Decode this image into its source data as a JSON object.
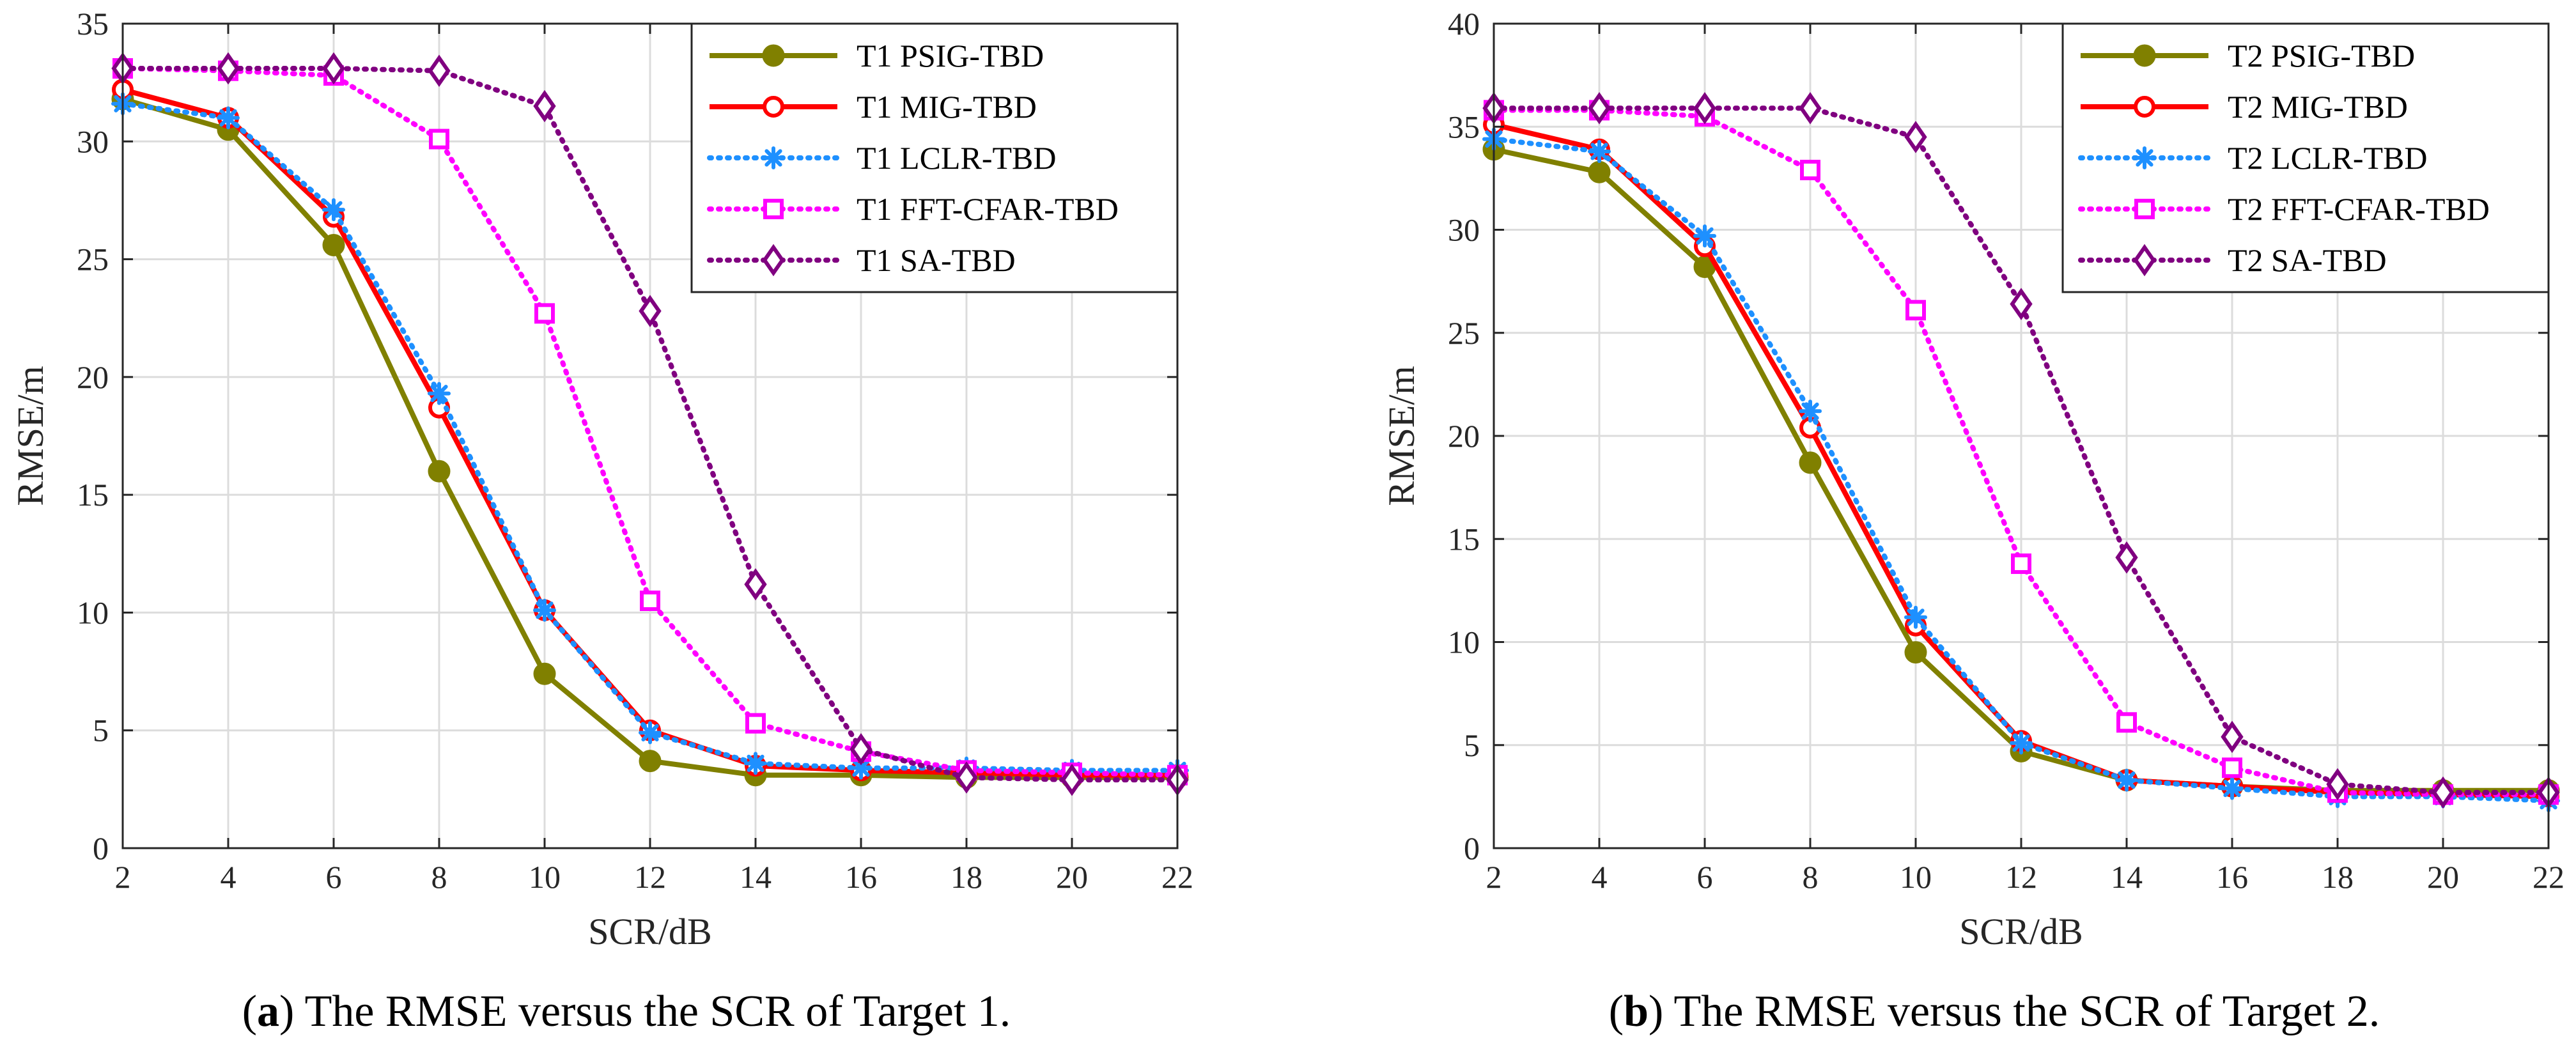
{
  "chart_data": [
    {
      "type": "line",
      "caption_prefix": "(",
      "caption_letter": "a",
      "caption_text": ") The RMSE versus the SCR of Target 1.",
      "xlabel": "SCR/dB",
      "ylabel": "RMSE/m",
      "xlim": [
        2,
        22
      ],
      "ylim": [
        0,
        35
      ],
      "xticks": [
        2,
        4,
        6,
        8,
        10,
        12,
        14,
        16,
        18,
        20,
        22
      ],
      "yticks": [
        0,
        5,
        10,
        15,
        20,
        25,
        30,
        35
      ],
      "grid": true,
      "legend_position": "top-right",
      "x": [
        2,
        4,
        6,
        8,
        10,
        12,
        14,
        16,
        18,
        20,
        22
      ],
      "series": [
        {
          "name": "T1 PSIG-TBD",
          "color": "#808000",
          "style": "solid",
          "marker": "filled-circle",
          "values": [
            31.8,
            30.5,
            25.6,
            16.0,
            7.4,
            3.7,
            3.1,
            3.1,
            3.0,
            3.0,
            3.0
          ]
        },
        {
          "name": "T1 MIG-TBD",
          "color": "#ff0000",
          "style": "solid",
          "marker": "open-circle",
          "values": [
            32.2,
            31.0,
            26.8,
            18.7,
            10.1,
            5.0,
            3.5,
            3.3,
            3.2,
            3.1,
            3.1
          ]
        },
        {
          "name": "T1 LCLR-TBD",
          "color": "#1e90ff",
          "style": "dotted",
          "marker": "asterisk",
          "values": [
            31.6,
            31.0,
            27.1,
            19.3,
            10.1,
            4.9,
            3.6,
            3.4,
            3.4,
            3.3,
            3.3
          ]
        },
        {
          "name": "T1 FFT-CFAR-TBD",
          "color": "#ff00ff",
          "style": "dotted",
          "marker": "square",
          "values": [
            33.1,
            33.0,
            32.8,
            30.1,
            22.7,
            10.5,
            5.3,
            4.1,
            3.3,
            3.2,
            3.1
          ]
        },
        {
          "name": "T1 SA-TBD",
          "color": "#800080",
          "style": "dotted",
          "marker": "diamond",
          "values": [
            33.1,
            33.1,
            33.1,
            33.0,
            31.5,
            22.8,
            11.2,
            4.2,
            3.0,
            2.9,
            2.9
          ]
        }
      ]
    },
    {
      "type": "line",
      "caption_prefix": "(",
      "caption_letter": "b",
      "caption_text": ") The RMSE versus the SCR of Target 2.",
      "xlabel": "SCR/dB",
      "ylabel": "RMSE/m",
      "xlim": [
        2,
        22
      ],
      "ylim": [
        0,
        40
      ],
      "xticks": [
        2,
        4,
        6,
        8,
        10,
        12,
        14,
        16,
        18,
        20,
        22
      ],
      "yticks": [
        0,
        5,
        10,
        15,
        20,
        25,
        30,
        35,
        40
      ],
      "grid": true,
      "legend_position": "top-right",
      "x": [
        2,
        4,
        6,
        8,
        10,
        12,
        14,
        16,
        18,
        20,
        22
      ],
      "series": [
        {
          "name": "T2 PSIG-TBD",
          "color": "#808000",
          "style": "solid",
          "marker": "filled-circle",
          "values": [
            33.9,
            32.8,
            28.2,
            18.7,
            9.5,
            4.7,
            3.3,
            3.0,
            2.8,
            2.8,
            2.8
          ]
        },
        {
          "name": "T2 MIG-TBD",
          "color": "#ff0000",
          "style": "solid",
          "marker": "open-circle",
          "values": [
            35.1,
            33.9,
            29.2,
            20.4,
            10.8,
            5.2,
            3.3,
            3.0,
            2.7,
            2.6,
            2.5
          ]
        },
        {
          "name": "T2 LCLR-TBD",
          "color": "#1e90ff",
          "style": "dotted",
          "marker": "asterisk",
          "values": [
            34.4,
            33.8,
            29.7,
            21.2,
            11.2,
            5.1,
            3.3,
            2.9,
            2.5,
            2.5,
            2.3
          ]
        },
        {
          "name": "T2 FFT-CFAR-TBD",
          "color": "#ff00ff",
          "style": "dotted",
          "marker": "square",
          "values": [
            35.8,
            35.8,
            35.5,
            32.9,
            26.1,
            13.8,
            6.1,
            3.9,
            2.7,
            2.6,
            2.6
          ]
        },
        {
          "name": "T2 SA-TBD",
          "color": "#800080",
          "style": "dotted",
          "marker": "diamond",
          "values": [
            35.9,
            35.9,
            35.9,
            35.9,
            34.5,
            26.4,
            14.1,
            5.4,
            3.1,
            2.7,
            2.7
          ]
        }
      ]
    }
  ]
}
